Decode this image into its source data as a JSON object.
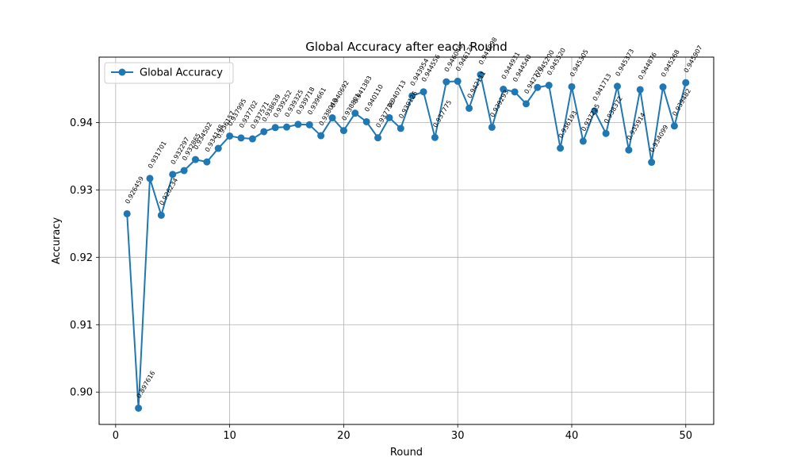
{
  "chart_data": {
    "type": "line",
    "title": "Global Accuracy after each Round",
    "xlabel": "Round",
    "ylabel": "Accuracy",
    "xlim": [
      -1.45,
      52.45
    ],
    "ylim": [
      0.8952,
      0.9497
    ],
    "xticks": [
      0,
      10,
      20,
      30,
      40,
      50
    ],
    "yticks": [
      0.9,
      0.91,
      0.92,
      0.93,
      0.94
    ],
    "ytick_labels": [
      "0.90",
      "0.91",
      "0.92",
      "0.93",
      "0.94"
    ],
    "grid": true,
    "legend_placement": "top-left",
    "series": [
      {
        "name": "Global Accuracy",
        "color": "#1f77b4",
        "marker": "circle",
        "x": [
          1,
          2,
          3,
          4,
          5,
          6,
          7,
          8,
          9,
          10,
          11,
          12,
          13,
          14,
          15,
          16,
          17,
          18,
          19,
          20,
          21,
          22,
          23,
          24,
          25,
          26,
          27,
          28,
          29,
          30,
          31,
          32,
          33,
          34,
          35,
          36,
          37,
          38,
          39,
          40,
          41,
          42,
          43,
          44,
          45,
          46,
          47,
          48,
          49,
          50
        ],
        "values": [
          0.926459,
          0.897616,
          0.931701,
          0.926234,
          0.932297,
          0.932865,
          0.934502,
          0.934148,
          0.936157,
          0.937995,
          0.937702,
          0.937571,
          0.938639,
          0.939252,
          0.939325,
          0.939718,
          0.939661,
          0.93804,
          0.940692,
          0.938801,
          0.941383,
          0.94011,
          0.937736,
          0.940713,
          0.939126,
          0.943954,
          0.944556,
          0.937775,
          0.94604,
          0.946121,
          0.942111,
          0.947098,
          0.939293,
          0.944931,
          0.94454,
          0.94277,
          0.9452,
          0.94552,
          0.936193,
          0.945305,
          0.937225,
          0.941713,
          0.938372,
          0.945373,
          0.935914,
          0.944876,
          0.934099,
          0.945268,
          0.939482,
          0.945907
        ],
        "labels": [
          "0.926459",
          "0.897616",
          "0.931701",
          "0.926234",
          "0.932297",
          "0.932865",
          "0.934502",
          "0.934148",
          "0.936157",
          "0.937995",
          "0.937702",
          "0.937571",
          "0.938639",
          "0.939252",
          "0.939325",
          "0.939718",
          "0.939661",
          "0.938040",
          "0.940692",
          "0.938801",
          "0.941383",
          "0.940110",
          "0.937736",
          "0.940713",
          "0.939126",
          "0.943954",
          "0.944556",
          "0.937775",
          "0.946040",
          "0.946121",
          "0.942111",
          "0.947098",
          "0.939293",
          "0.944931",
          "0.944540",
          "0.942770",
          "0.945200",
          "0.945520",
          "0.936193",
          "0.945305",
          "0.937225",
          "0.941713",
          "0.938372",
          "0.945373",
          "0.935914",
          "0.944876",
          "0.934099",
          "0.945268",
          "0.939482",
          "0.945907"
        ]
      }
    ]
  }
}
